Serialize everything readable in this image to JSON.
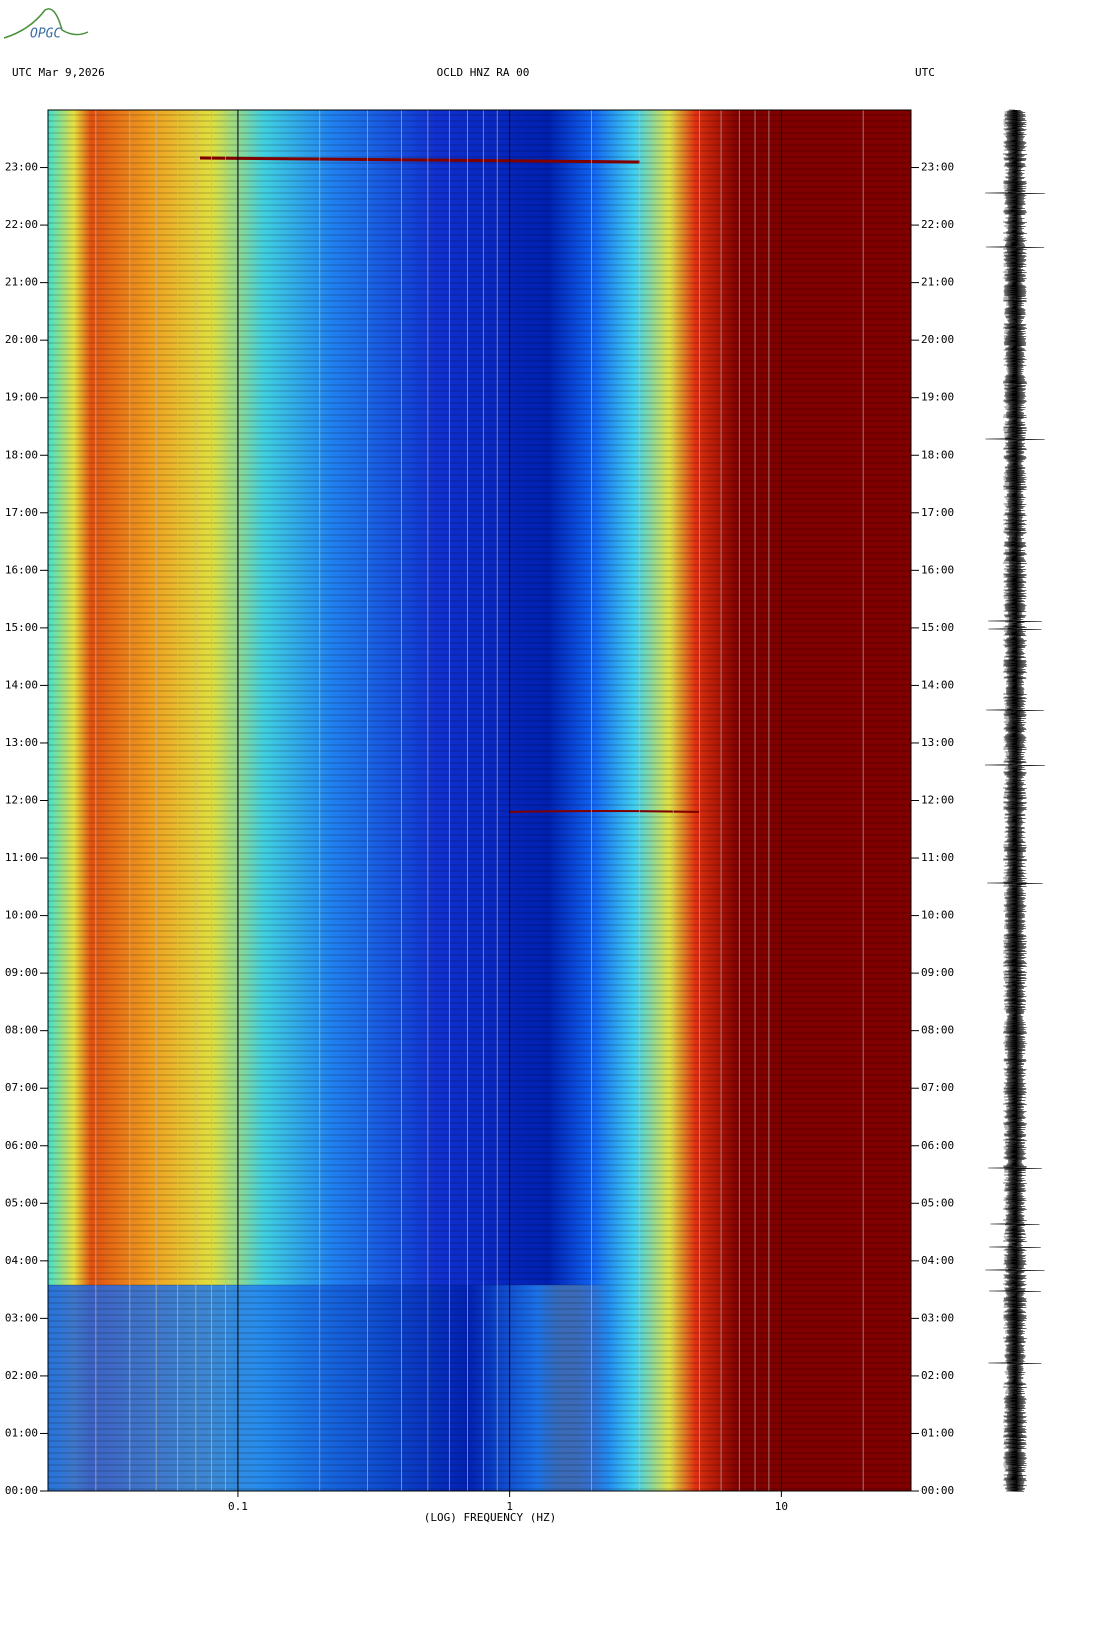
{
  "logo": "OPGC",
  "chart_data": {
    "type": "spectrogram",
    "title": "OCLD HNZ RA 00",
    "left_header": "UTC  Mar 9,2026",
    "right_header": "UTC",
    "xlabel": "(LOG) FREQUENCY (HZ)",
    "xscale": "log",
    "xlim": [
      0.02,
      30
    ],
    "xticks": [
      0.1,
      1,
      10
    ],
    "ylim": [
      0,
      24
    ],
    "yticks": [
      {
        "value": 0,
        "label": "00:00"
      },
      {
        "value": 1,
        "label": "01:00"
      },
      {
        "value": 2,
        "label": "02:00"
      },
      {
        "value": 3,
        "label": "03:00"
      },
      {
        "value": 4,
        "label": "04:00"
      },
      {
        "value": 5,
        "label": "05:00"
      },
      {
        "value": 6,
        "label": "06:00"
      },
      {
        "value": 7,
        "label": "07:00"
      },
      {
        "value": 8,
        "label": "08:00"
      },
      {
        "value": 9,
        "label": "09:00"
      },
      {
        "value": 10,
        "label": "10:00"
      },
      {
        "value": 11,
        "label": "11:00"
      },
      {
        "value": 12,
        "label": "12:00"
      },
      {
        "value": 13,
        "label": "13:00"
      },
      {
        "value": 14,
        "label": "14:00"
      },
      {
        "value": 15,
        "label": "15:00"
      },
      {
        "value": 16,
        "label": "16:00"
      },
      {
        "value": 17,
        "label": "17:00"
      },
      {
        "value": 18,
        "label": "18:00"
      },
      {
        "value": 19,
        "label": "19:00"
      },
      {
        "value": 20,
        "label": "20:00"
      },
      {
        "value": 21,
        "label": "21:00"
      },
      {
        "value": 22,
        "label": "22:00"
      },
      {
        "value": 23,
        "label": "23:00"
      }
    ]
  }
}
